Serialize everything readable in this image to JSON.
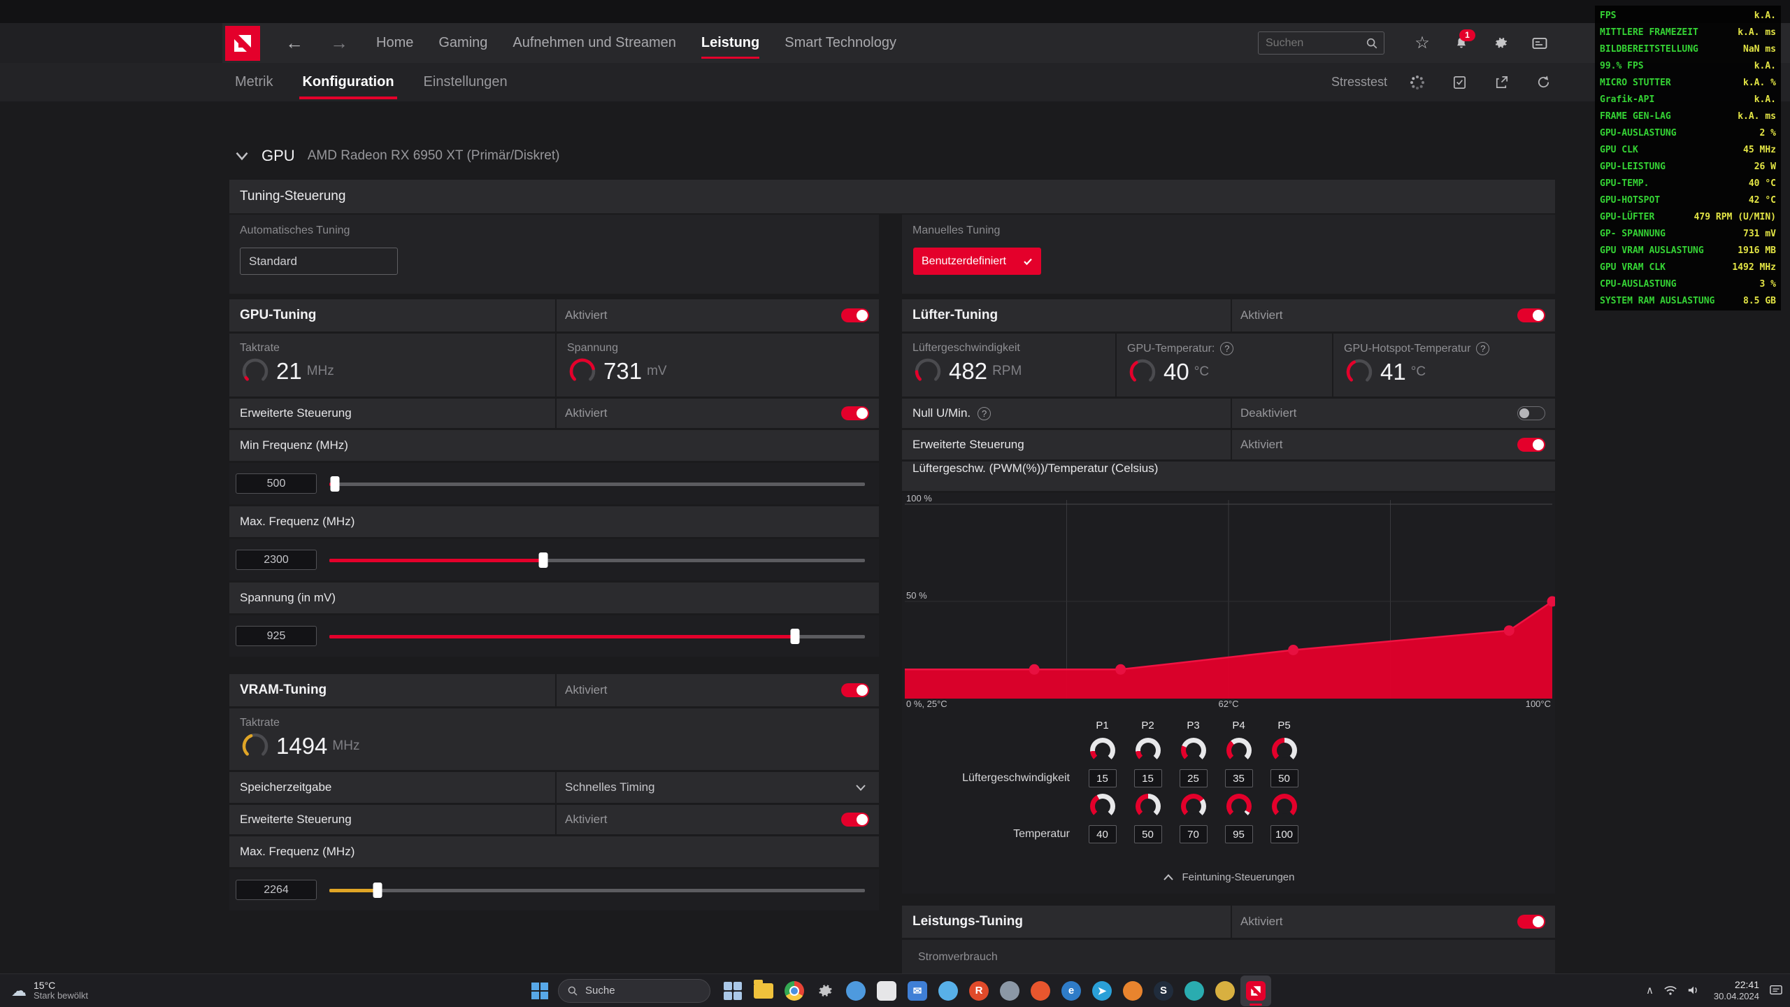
{
  "app": {
    "topbar": {
      "nav": [
        "Home",
        "Gaming",
        "Aufnehmen und Streamen",
        "Leistung",
        "Smart Technology"
      ],
      "nav_active": "Leistung",
      "search_placeholder": "Suchen",
      "notification_badge": "1"
    },
    "subnav": {
      "tabs": [
        "Metrik",
        "Konfiguration",
        "Einstellungen"
      ],
      "active_tab": "Konfiguration",
      "stresstest_label": "Stresstest"
    }
  },
  "overlay": {
    "rows": [
      {
        "label": "FPS",
        "value": "k.A."
      },
      {
        "label": "MITTLERE FRAMEZEIT",
        "value": "k.A. ms"
      },
      {
        "label": "BILDBEREITSTELLUNG",
        "value": "NaN ms"
      },
      {
        "label": "99.% FPS",
        "value": "k.A."
      },
      {
        "label": "MICRO STUTTER",
        "value": "k.A. %"
      },
      {
        "label": "Grafik-API",
        "value": "k.A."
      },
      {
        "label": "FRAME GEN-LAG",
        "value": "k.A. ms"
      },
      {
        "label": "GPU-AUSLASTUNG",
        "value": "2 %"
      },
      {
        "label": "GPU CLK",
        "value": "45 MHz"
      },
      {
        "label": "GPU-LEISTUNG",
        "value": "26 W"
      },
      {
        "label": "GPU-TEMP.",
        "value": "40 °C"
      },
      {
        "label": "GPU-HOTSPOT",
        "value": "42 °C"
      },
      {
        "label": "GPU-LÜFTER",
        "value": "479 RPM (U/MIN)"
      },
      {
        "label": "GP- SPANNUNG",
        "value": "731 mV"
      },
      {
        "label": "GPU VRAM AUSLASTUNG",
        "value": "1916 MB"
      },
      {
        "label": "GPU VRAM CLK",
        "value": "1492 MHz"
      },
      {
        "label": "CPU-AUSLASTUNG",
        "value": "3 %"
      },
      {
        "label": "SYSTEM RAM AUSLASTUNG",
        "value": "8.5 GB"
      }
    ]
  },
  "gpu_section": {
    "label": "GPU",
    "device": "AMD Radeon RX 6950 XT (Primär/Diskret)"
  },
  "tuning_control": {
    "title": "Tuning-Steuerung",
    "auto_label": "Automatisches Tuning",
    "auto_value": "Standard",
    "manual_label": "Manuelles Tuning",
    "manual_button": "Benutzerdefiniert"
  },
  "gpu_tuning": {
    "title": "GPU-Tuning",
    "enabled_label": "Aktiviert",
    "gauges": [
      {
        "label": "Taktrate",
        "value": "21",
        "unit": "MHz",
        "arc": 0.04,
        "color": "#e4002b",
        "help": false
      },
      {
        "label": "Spannung",
        "value": "731",
        "unit": "mV",
        "arc": 0.78,
        "color": "#e4002b",
        "help": false
      }
    ],
    "advanced_label": "Erweiterte Steuerung",
    "advanced_status": "Aktiviert",
    "sliders": [
      {
        "label": "Min Frequenz (MHz)",
        "value": "500",
        "percent": 1,
        "color": "#e4002b"
      },
      {
        "label": "Max. Frequenz (MHz)",
        "value": "2300",
        "percent": 40,
        "color": "#e4002b"
      },
      {
        "label": "Spannung (in mV)",
        "value": "925",
        "percent": 87,
        "color": "#e4002b"
      }
    ]
  },
  "vram_tuning": {
    "title": "VRAM-Tuning",
    "enabled_label": "Aktiviert",
    "gauges": [
      {
        "label": "Taktrate",
        "value": "1494",
        "unit": "MHz",
        "arc": 0.42,
        "color": "#e0a526",
        "help": false
      }
    ],
    "timing_label": "Speicherzeitgabe",
    "timing_value": "Schnelles Timing",
    "advanced_label": "Erweiterte Steuerung",
    "advanced_status": "Aktiviert",
    "sliders": [
      {
        "label": "Max. Frequenz (MHz)",
        "value": "2264",
        "percent": 9,
        "color": "#e0a526"
      }
    ]
  },
  "fan_tuning": {
    "title": "Lüfter-Tuning",
    "enabled_label": "Aktiviert",
    "gauges": [
      {
        "label": "Lüftergeschwindigkeit",
        "value": "482",
        "unit": "RPM",
        "arc": 0.16,
        "color": "#e4002b",
        "help": false
      },
      {
        "label": "GPU-Temperatur:",
        "value": "40",
        "unit": "°C",
        "arc": 0.38,
        "color": "#e4002b",
        "help": true
      },
      {
        "label": "GPU-Hotspot-Temperatur",
        "value": "41",
        "unit": "°C",
        "arc": 0.4,
        "color": "#e4002b",
        "help": true
      }
    ],
    "zero_rpm_label": "Null U/Min.",
    "zero_rpm_status": "Deaktiviert",
    "advanced_label": "Erweiterte Steuerung",
    "advanced_status": "Aktiviert",
    "chart_data": {
      "type": "area",
      "title": "Lüftergeschw. (PWM(%))/Temperatur (Celsius)",
      "x": [
        40,
        50,
        70,
        95,
        100
      ],
      "y": [
        15,
        15,
        25,
        35,
        50
      ],
      "point_labels": [
        "P1",
        "P2",
        "P3",
        "P4",
        "P5"
      ],
      "xlabel": "Temperatur (Celsius)",
      "ylabel": "Lüftergeschw. PWM (%)",
      "xlim": [
        25,
        100
      ],
      "ylim": [
        0,
        100
      ],
      "x_tick_labels": [
        "0 %, 25°C",
        "62°C",
        "100°C"
      ],
      "y_tick_labels": [
        "100 %",
        "50 %"
      ],
      "series_color": "#e4002b",
      "grid": true,
      "legend": false
    },
    "points_table": {
      "headers": [
        "P1",
        "P2",
        "P3",
        "P4",
        "P5"
      ],
      "speed_label": "Lüftergeschwindigkeit",
      "speeds": [
        "15",
        "15",
        "25",
        "35",
        "50"
      ],
      "temp_label": "Temperatur",
      "temps": [
        "40",
        "50",
        "70",
        "95",
        "100"
      ]
    },
    "fine_tuning_label": "Feintuning-Steuerungen"
  },
  "power_tuning": {
    "title": "Leistungs-Tuning",
    "enabled_label": "Aktiviert",
    "row_label": "Stromverbrauch"
  },
  "taskbar": {
    "weather_temp": "15°C",
    "weather_desc": "Stark bewölkt",
    "search_label": "Suche",
    "icons": [
      {
        "name": "task-view-icon",
        "type": "squares",
        "color": "#aac8e8",
        "letter": ""
      },
      {
        "name": "file-explorer-icon",
        "type": "folder",
        "color": "#f0c23c",
        "letter": ""
      },
      {
        "name": "chrome-icon",
        "type": "chrome",
        "color": "",
        "letter": ""
      },
      {
        "name": "settings-icon",
        "type": "gear",
        "color": "#c6c6c8",
        "letter": ""
      },
      {
        "name": "display-app-icon",
        "type": "circle",
        "color": "#4e9ade",
        "letter": ""
      },
      {
        "name": "whiteboard-app-icon",
        "type": "tile",
        "color": "#e6e6e8",
        "letter": ""
      },
      {
        "name": "mail-icon",
        "type": "tile",
        "color": "#3f7fd6",
        "letter": "✉"
      },
      {
        "name": "store-icon",
        "type": "circle",
        "color": "#58b0e8",
        "letter": ""
      },
      {
        "name": "app-r-icon",
        "type": "circle",
        "color": "#e04a2a",
        "letter": "R"
      },
      {
        "name": "app-grey-icon",
        "type": "circle",
        "color": "#8c98a6",
        "letter": ""
      },
      {
        "name": "brave-icon",
        "type": "circle",
        "color": "#e8562e",
        "letter": ""
      },
      {
        "name": "edge-icon",
        "type": "circle",
        "color": "#2f7cc8",
        "letter": "e"
      },
      {
        "name": "telegram-icon",
        "type": "circle",
        "color": "#2aa0d8",
        "letter": "➤"
      },
      {
        "name": "firefox-icon",
        "type": "circle",
        "color": "#e8842e",
        "letter": ""
      },
      {
        "name": "steam-icon",
        "type": "circle",
        "color": "#202c3c",
        "letter": "S"
      },
      {
        "name": "app-teal-icon",
        "type": "circle",
        "color": "#2aacb0",
        "letter": ""
      },
      {
        "name": "media-icon",
        "type": "circle",
        "color": "#d8b040",
        "letter": ""
      },
      {
        "name": "amd-software-icon",
        "type": "amd",
        "color": "#e4002b",
        "letter": "",
        "active": true
      }
    ],
    "tray_time": "22:41",
    "tray_date": "30.04.2024"
  }
}
